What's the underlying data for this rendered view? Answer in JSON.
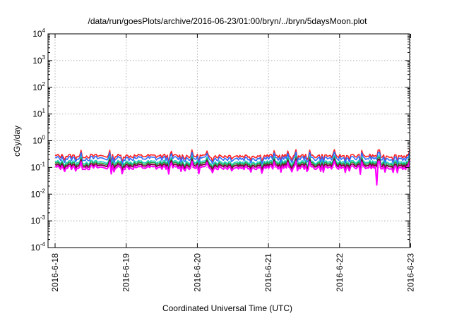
{
  "chart_data": {
    "type": "line",
    "title": "/data/run/goesPlots/archive/2016-06-23/01:00/bryn/../bryn/5daysMoon.plot",
    "xlabel": "Coordinated Universal Time (UTC)",
    "ylabel": "cGy/day",
    "yscale": "log",
    "ylim": [
      0.0001,
      10000
    ],
    "yticks": [
      {
        "base": "10",
        "exp": "-4",
        "value": 0.0001
      },
      {
        "base": "10",
        "exp": "-3",
        "value": 0.001
      },
      {
        "base": "10",
        "exp": "-2",
        "value": 0.01
      },
      {
        "base": "10",
        "exp": "-1",
        "value": 0.1
      },
      {
        "base": "10",
        "exp": "0",
        "value": 1
      },
      {
        "base": "10",
        "exp": "1",
        "value": 10
      },
      {
        "base": "10",
        "exp": "2",
        "value": 100
      },
      {
        "base": "10",
        "exp": "3",
        "value": 1000
      },
      {
        "base": "10",
        "exp": "4",
        "value": 10000
      }
    ],
    "xlim": [
      "2016-06-18",
      "2016-06-23 01:00"
    ],
    "xticks": [
      {
        "label": "2016-6-18",
        "day": 0
      },
      {
        "label": "2016-6-19",
        "day": 1
      },
      {
        "label": "2016-6-20",
        "day": 2
      },
      {
        "label": "2016-6-21",
        "day": 3
      },
      {
        "label": "2016-6-22",
        "day": 4
      },
      {
        "label": "2016-6-23",
        "day": 5
      }
    ],
    "grid": true,
    "series": [
      {
        "color": "#ff2020",
        "base": 0.27,
        "spread": 0.05
      },
      {
        "color": "#2f6bff",
        "base": 0.22,
        "spread": 0.05
      },
      {
        "color": "#20d0c0",
        "base": 0.16,
        "spread": 0.03
      },
      {
        "color": "#20a040",
        "base": 0.14,
        "spread": 0.025
      },
      {
        "color": "#800040",
        "base": 0.12,
        "spread": 0.02
      },
      {
        "color": "#ff00ff",
        "base": 0.1,
        "spread": 0.02
      }
    ],
    "notable_dip": {
      "day": 4.52,
      "value": 0.022
    }
  }
}
